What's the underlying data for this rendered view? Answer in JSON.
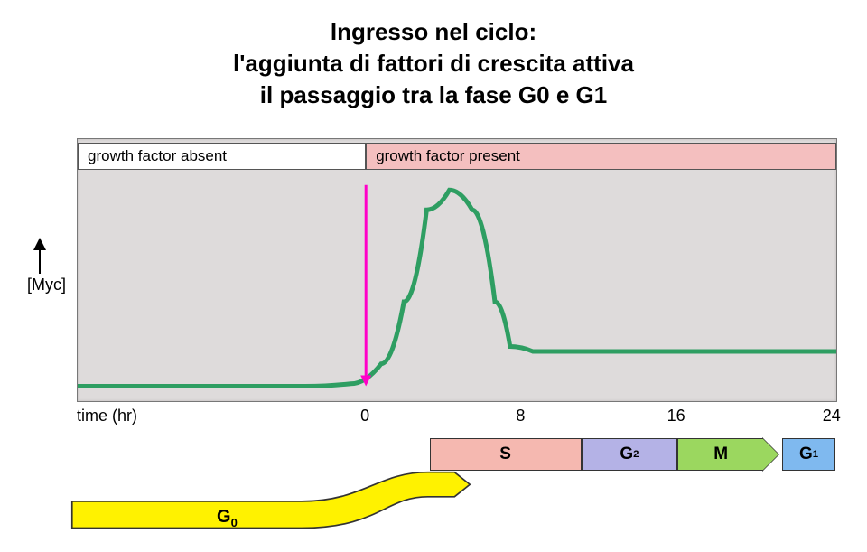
{
  "title_line1": "Ingresso nel ciclo:",
  "title_line2": "l'aggiunta di fattori di crescita attiva",
  "title_line3": "il passaggio tra la fase G0 e G1",
  "chart": {
    "type": "line",
    "background_color": "#dedbdb",
    "border_color": "#777777",
    "curve_color": "#2e9e62",
    "curve_width": 5,
    "pink_marker_color": "#ff00c8",
    "pink_marker_width": 3,
    "yaxis_label": "[Myc]",
    "factor_bars": [
      {
        "label": "growth factor absent",
        "color": "#ffffff",
        "from": 0,
        "to": 0.38
      },
      {
        "label": "growth factor present",
        "color": "#f4bfbf",
        "from": 0.38,
        "to": 1.0
      }
    ],
    "time_label": "time (hr)",
    "time_ticks": [
      {
        "val": "0",
        "pos": 0.38
      },
      {
        "val": "8",
        "pos": 0.585
      },
      {
        "val": "16",
        "pos": 0.79
      },
      {
        "val": "24",
        "pos": 0.995
      }
    ],
    "curve_points": [
      [
        0.0,
        0.94
      ],
      [
        0.3,
        0.94
      ],
      [
        0.36,
        0.93
      ],
      [
        0.4,
        0.85
      ],
      [
        0.43,
        0.6
      ],
      [
        0.46,
        0.23
      ],
      [
        0.49,
        0.15
      ],
      [
        0.52,
        0.23
      ],
      [
        0.55,
        0.6
      ],
      [
        0.57,
        0.78
      ],
      [
        0.6,
        0.8
      ],
      [
        0.7,
        0.8
      ],
      [
        0.85,
        0.8
      ],
      [
        1.0,
        0.8
      ]
    ],
    "pink_line_x": 0.38,
    "pink_line_top": 0.13,
    "pink_line_bot": 0.94
  },
  "phases": {
    "upper": [
      {
        "label": "S",
        "sub": "",
        "color": "#f5b8b0",
        "from": 0.465,
        "to": 0.665
      },
      {
        "label": "G",
        "sub": "2",
        "color": "#b4b2e6",
        "from": 0.665,
        "to": 0.792
      },
      {
        "label": "M",
        "sub": "",
        "color": "#9bd75f",
        "from": 0.792,
        "to": 0.905,
        "arrow": true
      },
      {
        "label": "G",
        "sub": "1",
        "color": "#7fb9ef",
        "from": 0.93,
        "to": 1.0
      }
    ],
    "g0": {
      "label": "G",
      "sub": "0",
      "color": "#fff200",
      "border": "#333333"
    }
  }
}
